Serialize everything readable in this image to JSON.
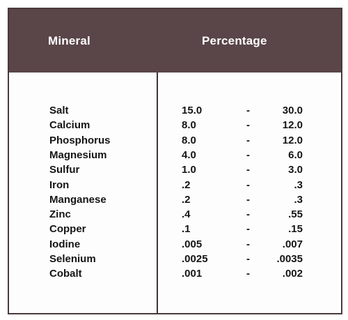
{
  "header": {
    "mineral": "Mineral",
    "percentage": "Percentage"
  },
  "rows": [
    {
      "name": "Salt",
      "low": "15.0",
      "sep": "-",
      "high": "30.0"
    },
    {
      "name": "Calcium",
      "low": "8.0",
      "sep": "-",
      "high": "12.0"
    },
    {
      "name": "Phosphorus",
      "low": "8.0",
      "sep": "-",
      "high": "12.0"
    },
    {
      "name": "Magnesium",
      "low": "4.0",
      "sep": "-",
      "high": "6.0"
    },
    {
      "name": "Sulfur",
      "low": "1.0",
      "sep": "-",
      "high": "3.0"
    },
    {
      "name": "Iron",
      "low": ".2",
      "sep": "-",
      "high": ".3"
    },
    {
      "name": "Manganese",
      "low": ".2",
      "sep": "-",
      "high": ".3"
    },
    {
      "name": "Zinc",
      "low": ".4",
      "sep": "-",
      "high": ".55"
    },
    {
      "name": "Copper",
      "low": ".1",
      "sep": "-",
      "high": ".15"
    },
    {
      "name": "Iodine",
      "low": ".005",
      "sep": "-",
      "high": ".007"
    },
    {
      "name": "Selenium",
      "low": ".0025",
      "sep": "-",
      "high": ".0035"
    },
    {
      "name": "Cobalt",
      "low": ".001",
      "sep": "-",
      "high": ".002"
    }
  ]
}
